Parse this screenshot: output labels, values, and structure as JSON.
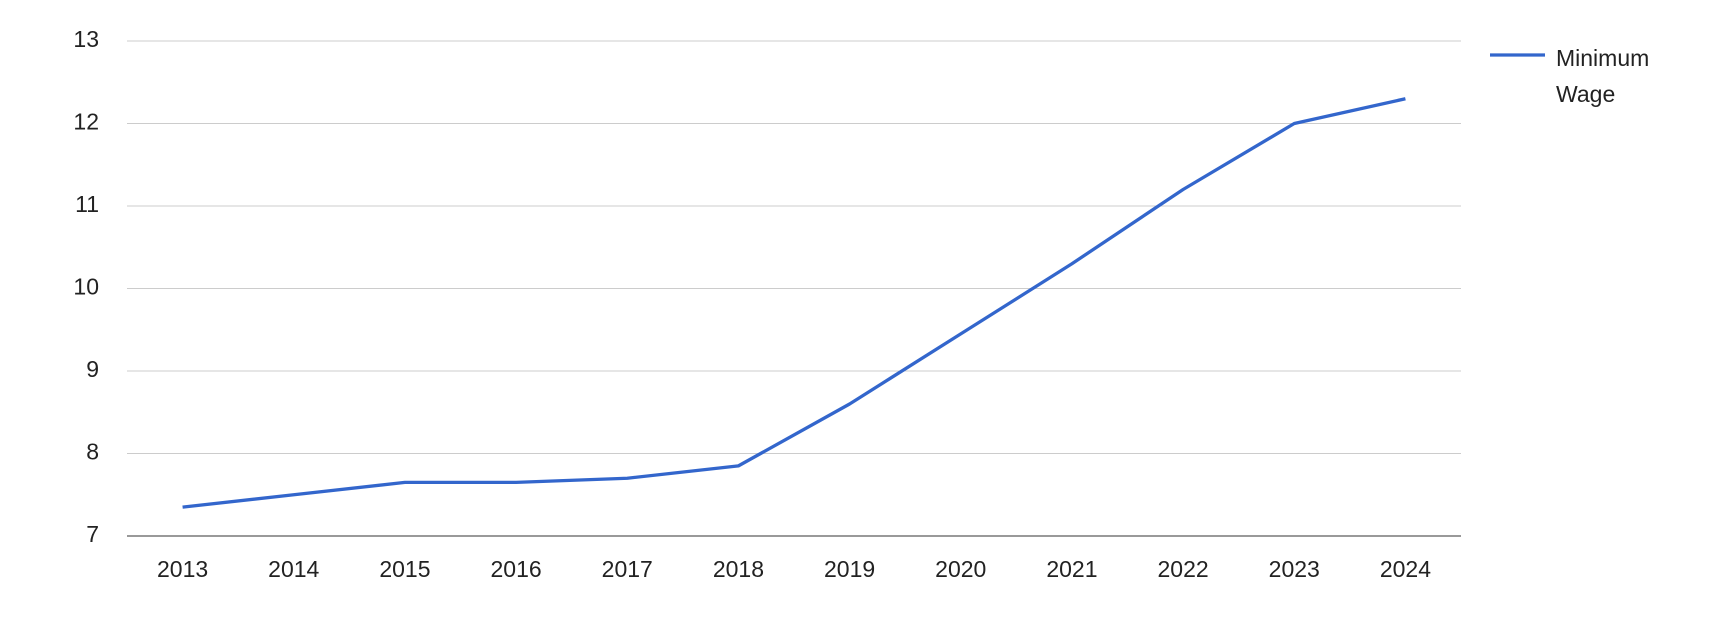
{
  "chart_data": {
    "type": "line",
    "categories": [
      "2013",
      "2014",
      "2015",
      "2016",
      "2017",
      "2018",
      "2019",
      "2020",
      "2021",
      "2022",
      "2023",
      "2024"
    ],
    "series": [
      {
        "name": "Minimum Wage",
        "color": "#3366cc",
        "values": [
          7.35,
          7.5,
          7.65,
          7.65,
          7.7,
          7.85,
          8.6,
          9.45,
          10.3,
          11.2,
          12.0,
          12.3
        ]
      }
    ],
    "ylim": [
      7,
      13
    ],
    "yticks": [
      7,
      8,
      9,
      10,
      11,
      12,
      13
    ],
    "grid": true,
    "legend": "right"
  }
}
